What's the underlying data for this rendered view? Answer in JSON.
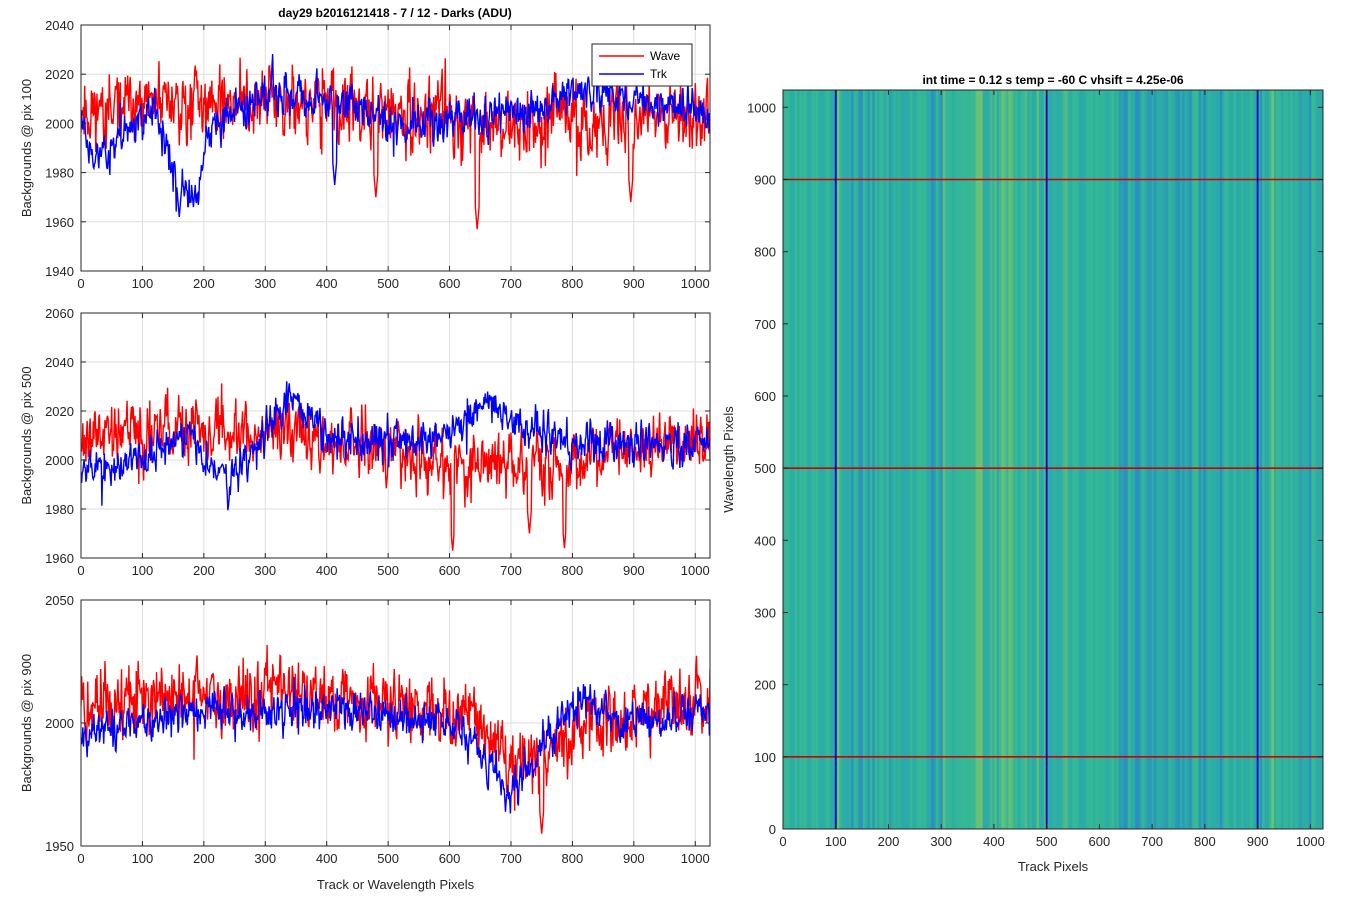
{
  "figure": {
    "title": "day29 b2016121418 - 7 / 12 - Darks (ADU)"
  },
  "chart_data": [
    {
      "type": "line",
      "ylabel": "Backgrounds @ pix 100",
      "xlabel": "",
      "xlim": [
        0,
        1024
      ],
      "ylim": [
        1940,
        2040
      ],
      "xticks": [
        "0",
        "100",
        "200",
        "300",
        "400",
        "500",
        "600",
        "700",
        "800",
        "900",
        "1000"
      ],
      "yticks": [
        "1940",
        "1960",
        "1980",
        "2000",
        "2020",
        "2040"
      ],
      "grid": true,
      "legend": {
        "location": "top-right",
        "entries": [
          "Wave",
          "Trk"
        ]
      },
      "series": [
        {
          "name": "Wave",
          "color": "#ff0000",
          "mean": 2003,
          "noise": 9,
          "seed": 11,
          "trend": [
            [
              0,
              2005
            ],
            [
              300,
              2010
            ],
            [
              500,
              2004
            ],
            [
              700,
              2000
            ],
            [
              1024,
              2005
            ]
          ],
          "dips": [
            [
              480,
              1970,
              3
            ],
            [
              645,
              1957,
              3
            ],
            [
              895,
              1968,
              3
            ]
          ]
        },
        {
          "name": "Trk",
          "color": "#0000ff",
          "mean": 2006,
          "noise": 5,
          "seed": 23,
          "trend": [
            [
              0,
              2005
            ],
            [
              20,
              1985
            ],
            [
              60,
              1995
            ],
            [
              120,
              2005
            ],
            [
              160,
              1975
            ],
            [
              185,
              1968
            ],
            [
              210,
              1998
            ],
            [
              300,
              2013
            ],
            [
              400,
              2010
            ],
            [
              460,
              2005
            ],
            [
              520,
              2000
            ],
            [
              650,
              2002
            ],
            [
              740,
              2006
            ],
            [
              800,
              2015
            ],
            [
              860,
              2012
            ],
            [
              1024,
              2004
            ]
          ],
          "dips": [
            [
              160,
              1962,
              4
            ],
            [
              183,
              1966,
              3
            ],
            [
              413,
              1975,
              3
            ]
          ]
        }
      ]
    },
    {
      "type": "line",
      "ylabel": "Backgrounds @ pix 500",
      "xlabel": "",
      "xlim": [
        0,
        1024
      ],
      "ylim": [
        1960,
        2060
      ],
      "xticks": [
        "0",
        "100",
        "200",
        "300",
        "400",
        "500",
        "600",
        "700",
        "800",
        "900",
        "1000"
      ],
      "yticks": [
        "1960",
        "1980",
        "2000",
        "2020",
        "2040",
        "2060"
      ],
      "grid": true,
      "series": [
        {
          "name": "Wave",
          "color": "#ff0000",
          "mean": 2005,
          "noise": 8,
          "seed": 37,
          "trend": [
            [
              0,
              2010
            ],
            [
              300,
              2012
            ],
            [
              500,
              2004
            ],
            [
              700,
              1997
            ],
            [
              800,
              2000
            ],
            [
              1024,
              2008
            ]
          ],
          "dips": [
            [
              605,
              1963,
              2
            ],
            [
              787,
              1964,
              2
            ],
            [
              730,
              1970,
              3
            ]
          ]
        },
        {
          "name": "Trk",
          "color": "#0000ff",
          "mean": 2008,
          "noise": 5,
          "seed": 53,
          "trend": [
            [
              0,
              2000
            ],
            [
              50,
              1995
            ],
            [
              100,
              2003
            ],
            [
              180,
              2010
            ],
            [
              240,
              1990
            ],
            [
              340,
              2025
            ],
            [
              420,
              2010
            ],
            [
              500,
              2008
            ],
            [
              600,
              2010
            ],
            [
              660,
              2025
            ],
            [
              720,
              2012
            ],
            [
              800,
              2008
            ],
            [
              1024,
              2006
            ]
          ],
          "dips": []
        }
      ]
    },
    {
      "type": "line",
      "ylabel": "Backgrounds @ pix 900",
      "xlabel": "Track or Wavelength Pixels",
      "xlim": [
        0,
        1024
      ],
      "ylim": [
        1950,
        2050
      ],
      "xticks": [
        "0",
        "100",
        "200",
        "300",
        "400",
        "500",
        "600",
        "700",
        "800",
        "900",
        "1000"
      ],
      "yticks": [
        "1950",
        "2000",
        "2050"
      ],
      "grid": true,
      "series": [
        {
          "name": "Wave",
          "color": "#ff0000",
          "mean": 2005,
          "noise": 9,
          "seed": 71,
          "trend": [
            [
              0,
              2008
            ],
            [
              300,
              2012
            ],
            [
              500,
              2008
            ],
            [
              640,
              2002
            ],
            [
              700,
              1985
            ],
            [
              760,
              1990
            ],
            [
              850,
              2000
            ],
            [
              1024,
              2010
            ]
          ],
          "dips": [
            [
              750,
              1955,
              3
            ]
          ]
        },
        {
          "name": "Trk",
          "color": "#0000ff",
          "mean": 2005,
          "noise": 5,
          "seed": 89,
          "trend": [
            [
              0,
              1995
            ],
            [
              100,
              2000
            ],
            [
              200,
              2005
            ],
            [
              300,
              2003
            ],
            [
              400,
              2006
            ],
            [
              560,
              2002
            ],
            [
              620,
              1998
            ],
            [
              700,
              1970
            ],
            [
              760,
              1995
            ],
            [
              820,
              2010
            ],
            [
              880,
              2000
            ],
            [
              1024,
              2005
            ]
          ],
          "dips": []
        }
      ]
    },
    {
      "type": "heatmap",
      "title": "int time = 0.12 s    temp = -60 C    vhsift = 4.25e-06",
      "xlabel": "Track Pixels",
      "ylabel": "Wavelength Pixels",
      "xlim": [
        0,
        1024
      ],
      "ylim": [
        0,
        1024
      ],
      "xticks": [
        "0",
        "100",
        "200",
        "300",
        "400",
        "500",
        "600",
        "700",
        "800",
        "900",
        "1000"
      ],
      "yticks": [
        "0",
        "100",
        "200",
        "300",
        "400",
        "500",
        "600",
        "700",
        "800",
        "900",
        "1000"
      ],
      "base_color": "#2db1a0",
      "colormap": [
        "#2a7fd0",
        "#2ca7b0",
        "#3cbf8c",
        "#8cc860"
      ],
      "vertical_markers": [
        {
          "x": 100,
          "color": "#0000cc"
        },
        {
          "x": 500,
          "color": "#0000cc"
        },
        {
          "x": 900,
          "color": "#0000cc"
        }
      ],
      "horizontal_markers": [
        {
          "y": 100,
          "color": "#cc0000"
        },
        {
          "y": 500,
          "color": "#cc0000"
        },
        {
          "y": 900,
          "color": "#cc0000"
        }
      ]
    }
  ]
}
